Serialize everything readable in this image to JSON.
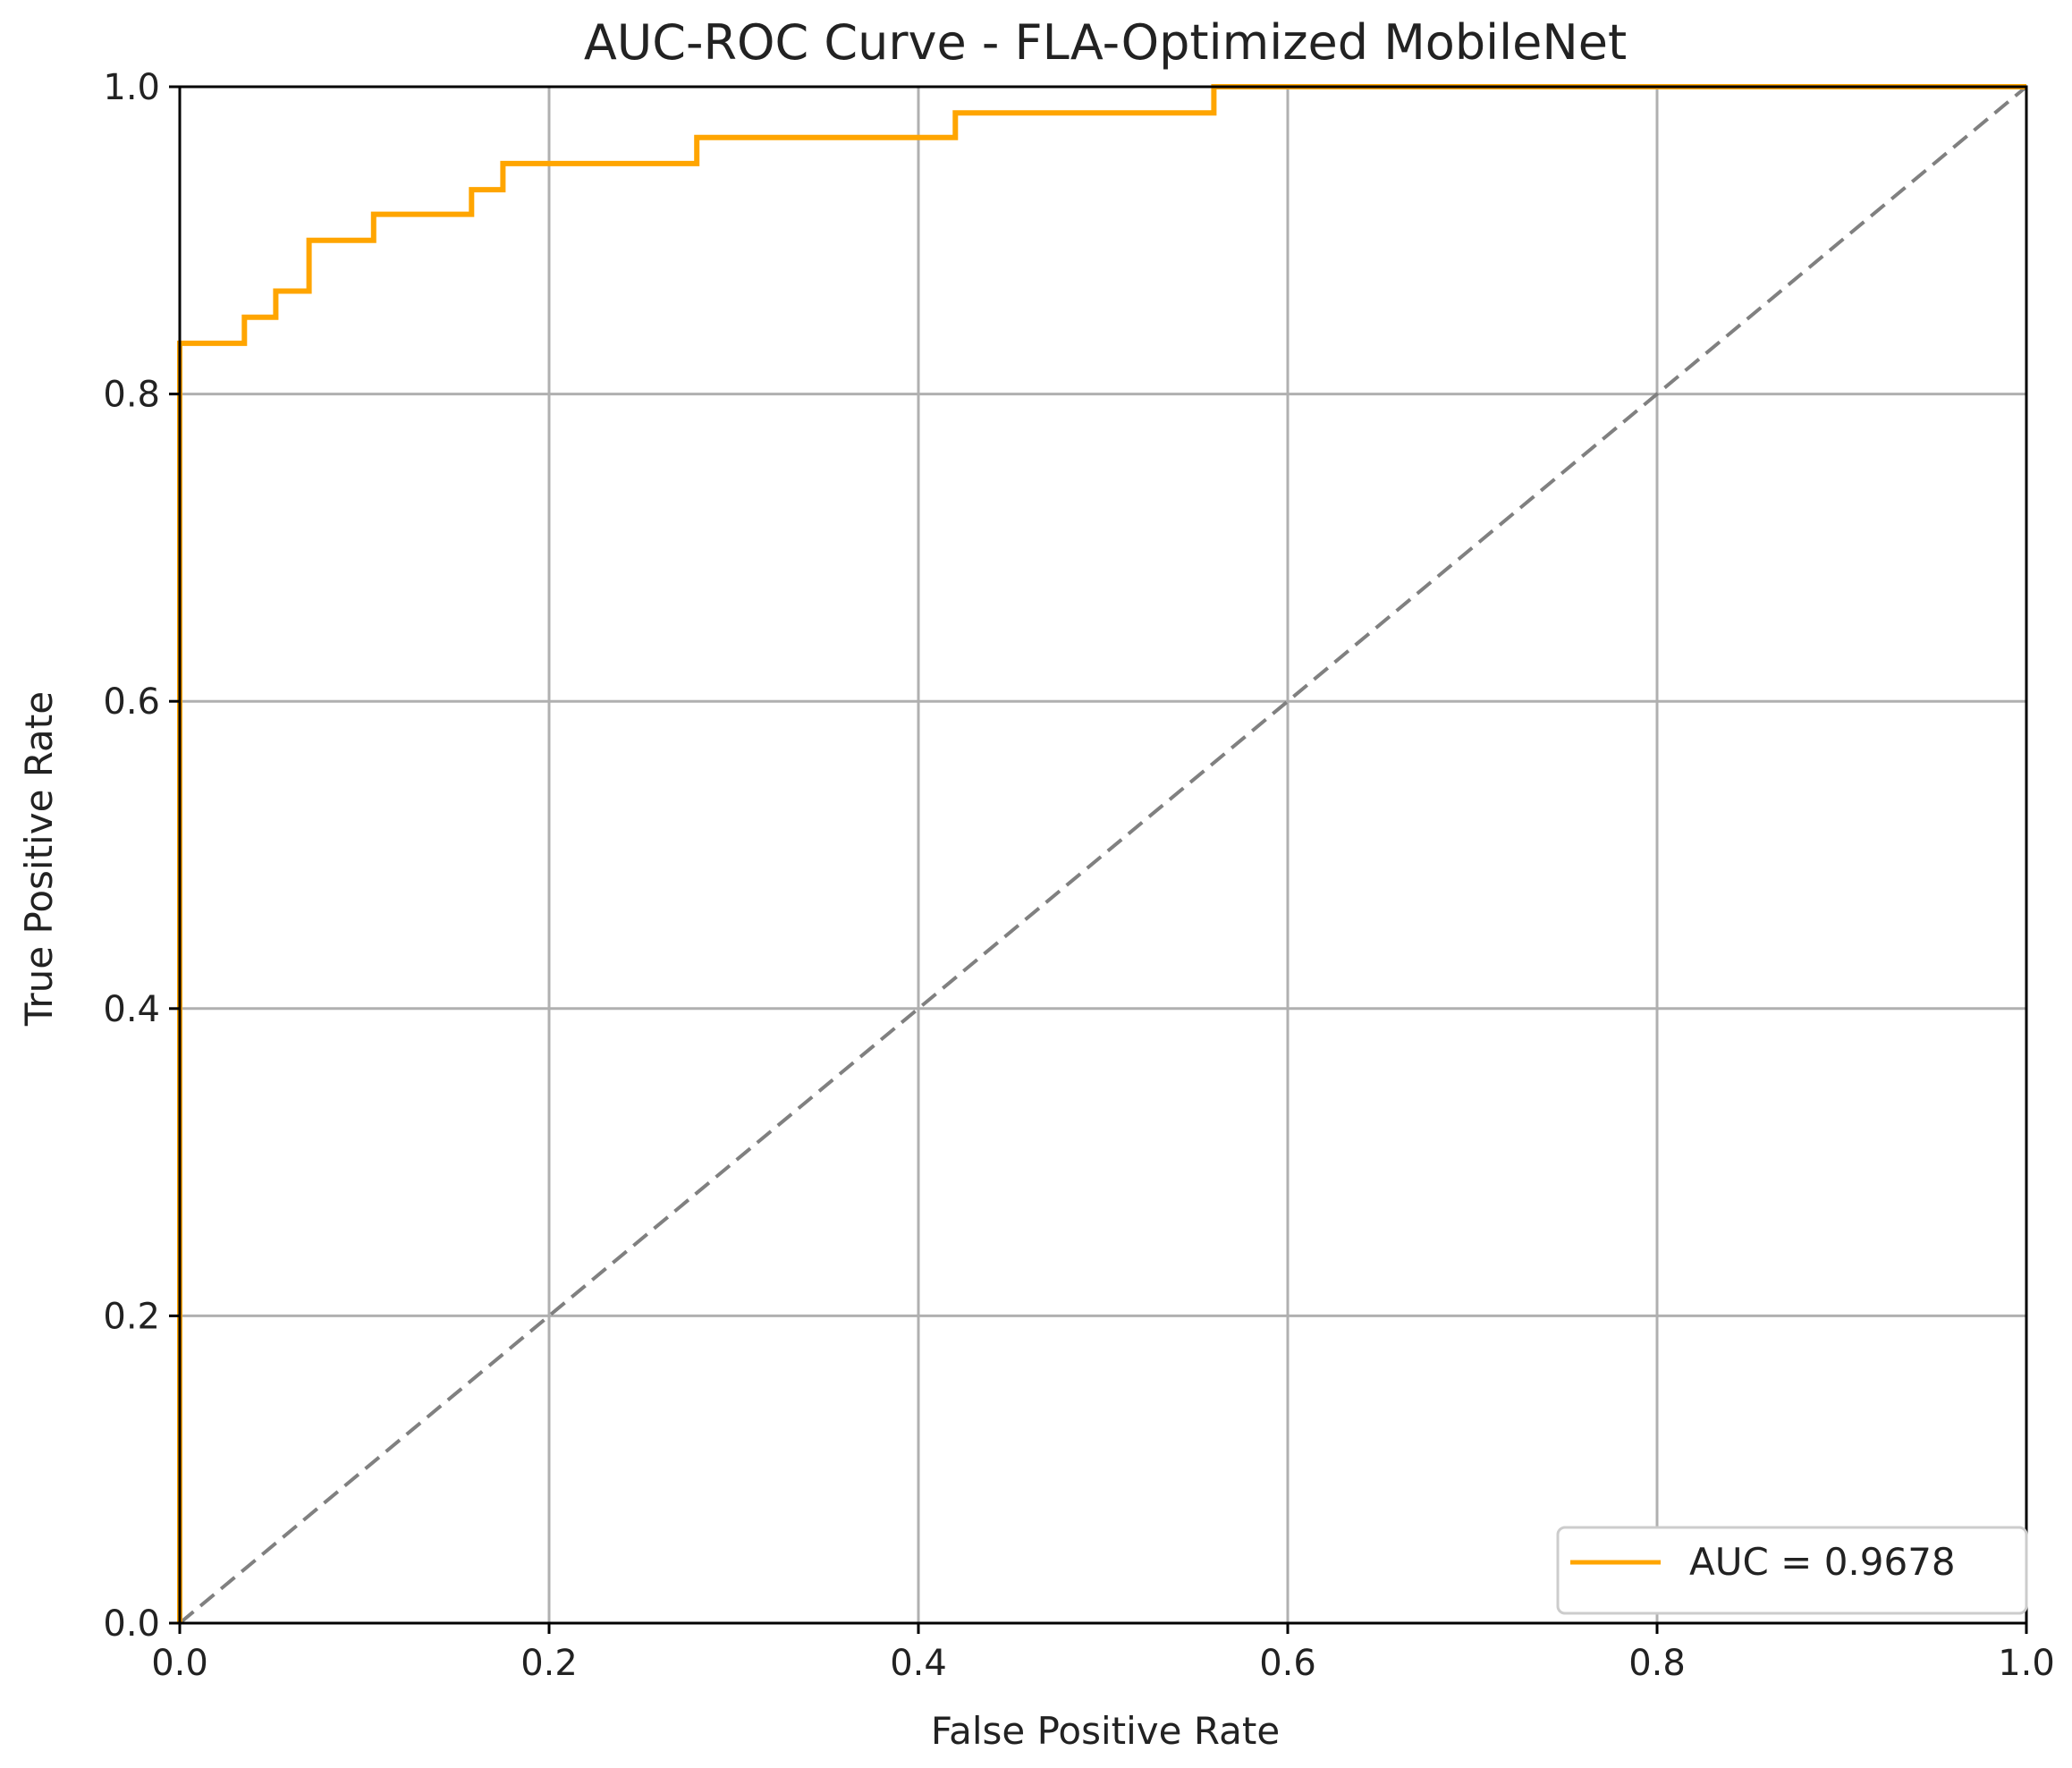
{
  "chart_data": {
    "type": "line",
    "title": "AUC-ROC Curve - FLA-Optimized MobileNet",
    "xlabel": "False Positive Rate",
    "ylabel": "True Positive Rate",
    "xlim": [
      0.0,
      1.0
    ],
    "ylim": [
      0.0,
      1.0
    ],
    "xticks": [
      "0.0",
      "0.2",
      "0.4",
      "0.6",
      "0.8",
      "1.0"
    ],
    "yticks": [
      "0.0",
      "0.2",
      "0.4",
      "0.6",
      "0.8",
      "1.0"
    ],
    "grid": true,
    "legend_position": "bottom-right",
    "series": [
      {
        "name": "AUC = 0.9678",
        "color": "#ffa500",
        "style": "step",
        "x": [
          0.0,
          0.0,
          0.035,
          0.035,
          0.052,
          0.052,
          0.07,
          0.07,
          0.105,
          0.105,
          0.158,
          0.158,
          0.175,
          0.175,
          0.28,
          0.28,
          0.42,
          0.42,
          0.56,
          0.56,
          1.0
        ],
        "y": [
          0.0,
          0.833,
          0.833,
          0.85,
          0.85,
          0.867,
          0.867,
          0.9,
          0.9,
          0.917,
          0.917,
          0.933,
          0.933,
          0.95,
          0.95,
          0.967,
          0.967,
          0.983,
          0.983,
          1.0,
          1.0
        ]
      },
      {
        "color": "#808080",
        "style": "dashed",
        "x": [
          0.0,
          1.0
        ],
        "y": [
          0.0,
          1.0
        ]
      }
    ]
  }
}
